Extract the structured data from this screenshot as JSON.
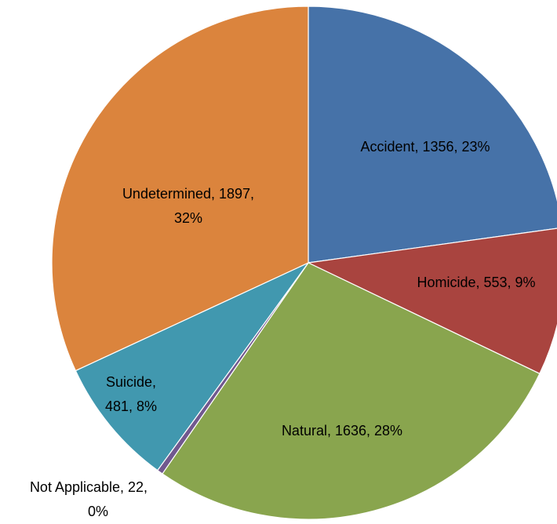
{
  "chart_data": {
    "type": "pie",
    "categories": [
      "Accident",
      "Homicide",
      "Natural",
      "Not Applicable",
      "Suicide",
      "Undetermined"
    ],
    "values": [
      1356,
      553,
      1636,
      22,
      481,
      1897
    ],
    "value_labels": [
      "Accident, 1356, 23%",
      "Homicide, 553, 9%",
      "Natural, 1636, 28%",
      "Not Applicable, 22, 0%",
      "Suicide, 481, 8%",
      "Undetermined, 1897, 32%"
    ],
    "colors": [
      "#4672a8",
      "#a9443f",
      "#89a54e",
      "#71588f",
      "#4198af",
      "#db843d"
    ]
  }
}
